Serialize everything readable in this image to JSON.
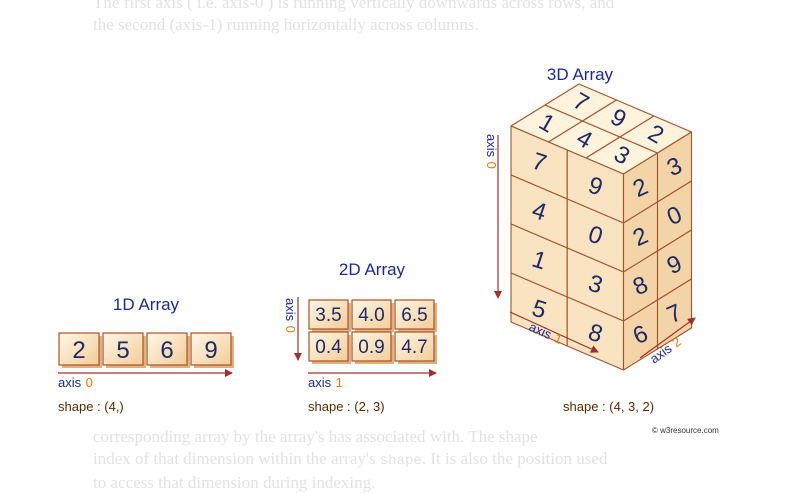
{
  "background_text": {
    "line1": "The first axis ( i.e. axis-0 ) is running vertically downwards across rows, and",
    "line2": "the second (axis-1) running horizontally across columns.",
    "line3": "corresponding array by the array's has associated with. The shape",
    "line4_a": "index of that dimension within the array's",
    "line4_code": "shape",
    "line4_b": ". It is also the position used",
    "line5": "to access that dimension during indexing."
  },
  "array_1d": {
    "title": "1D Array",
    "values": [
      "2",
      "5",
      "6",
      "9"
    ],
    "axis_word": "axis",
    "axis_num": "0",
    "shape": "shape : (4,)"
  },
  "array_2d": {
    "title": "2D Array",
    "rows": [
      [
        "3.5",
        "4.0",
        "6.5"
      ],
      [
        "0.4",
        "0.9",
        "4.7"
      ]
    ],
    "axis0_word": "axis",
    "axis0_num": "0",
    "axis1_word": "axis",
    "axis1_num": "1",
    "shape": "shape : (2, 3)"
  },
  "array_3d": {
    "title": "3D Array",
    "top": [
      "1",
      "7",
      "4",
      "9",
      "3",
      "2"
    ],
    "front": [
      "7",
      "9",
      "4",
      "0",
      "1",
      "3",
      "5",
      "8"
    ],
    "side": [
      "2",
      "3",
      "2",
      "0",
      "8",
      "9",
      "6",
      "7"
    ],
    "axis0_word": "axis",
    "axis0_num": "0",
    "axis1_word": "axis",
    "axis1_num": "1",
    "axis2_word": "axis",
    "axis2_num": "2",
    "shape": "shape : (4, 3, 2)"
  },
  "watermark": "© w3resource.com",
  "colors": {
    "cube_face": "#f9e3c0",
    "cube_top": "#fff3dc",
    "cube_side": "#f2d4a6",
    "cube_edge": "#a5532e",
    "number": "#1e2a66",
    "axis_word": "#1a2a99",
    "axis_num": "#e07a10",
    "arrow": "#a0302c"
  }
}
